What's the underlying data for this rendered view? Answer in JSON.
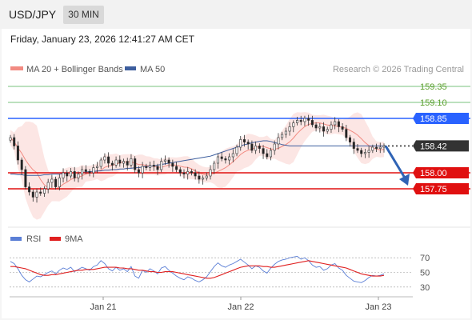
{
  "header": {
    "symbol": "USD/JPY",
    "timeframe": "30 MIN"
  },
  "timestamp": "Friday, January 23, 2026 12:41:27 AM CET",
  "legend": {
    "ma20": {
      "label": "MA 20 + Bollinger Bands",
      "color": "#f28b82"
    },
    "ma50": {
      "label": "MA 50",
      "color": "#3d5e9e"
    }
  },
  "credit": "Research © 2026 Trading Central",
  "rsi_legend": {
    "rsi": {
      "label": "RSI",
      "color": "#5b7fd6"
    },
    "ma9": {
      "label": "9MA",
      "color": "#e02020"
    }
  },
  "chart_data": [
    {
      "type": "candlestick",
      "ylim": [
        157.3,
        159.55
      ],
      "levels": [
        {
          "value": 159.35,
          "label": "159.35",
          "kind": "target",
          "color": "#4caf50"
        },
        {
          "value": 159.1,
          "label": "159.10",
          "kind": "target",
          "color": "#4caf50"
        },
        {
          "value": 158.85,
          "label": "158.85",
          "kind": "pivot",
          "color": "#2962ff"
        },
        {
          "value": 158.42,
          "label": "158.42",
          "kind": "last",
          "color": "#333333"
        },
        {
          "value": 158.0,
          "label": "158.00",
          "kind": "support",
          "color": "#e01010"
        },
        {
          "value": 157.75,
          "label": "157.75",
          "kind": "support",
          "color": "#e01010"
        }
      ],
      "close_series": [
        158.55,
        158.42,
        158.2,
        158.05,
        157.78,
        157.7,
        157.62,
        157.7,
        157.68,
        157.75,
        157.85,
        157.9,
        157.78,
        157.92,
        158.0,
        157.95,
        158.02,
        157.92,
        157.98,
        158.05,
        158.02,
        158.0,
        158.08,
        158.1,
        158.2,
        158.25,
        158.15,
        158.12,
        158.2,
        158.15,
        158.18,
        158.12,
        158.22,
        158.05,
        158.0,
        158.1,
        158.08,
        158.12,
        158.1,
        158.05,
        158.18,
        158.2,
        158.15,
        158.1,
        158.05,
        158.0,
        157.98,
        158.02,
        158.0,
        157.95,
        157.9,
        157.92,
        157.95,
        158.05,
        158.15,
        158.25,
        158.22,
        158.2,
        158.25,
        158.3,
        158.4,
        158.52,
        158.48,
        158.45,
        158.35,
        158.42,
        158.38,
        158.3,
        158.25,
        158.35,
        158.45,
        158.55,
        158.6,
        158.65,
        158.72,
        158.78,
        158.82,
        158.8,
        158.85,
        158.82,
        158.75,
        158.7,
        158.72,
        158.65,
        158.68,
        158.75,
        158.8,
        158.72,
        158.68,
        158.55,
        158.48,
        158.38,
        158.35,
        158.3,
        158.32,
        158.35,
        158.4,
        158.38,
        158.4,
        158.42
      ],
      "ma50": [
        157.98,
        157.98,
        157.97,
        157.97,
        157.96,
        157.96,
        157.96,
        157.96,
        157.96,
        157.97,
        157.97,
        157.98,
        157.98,
        157.98,
        157.99,
        157.99,
        158.0,
        158.0,
        158.0,
        158.01,
        158.01,
        158.02,
        158.02,
        158.03,
        158.03,
        158.04,
        158.04,
        158.05,
        158.05,
        158.06,
        158.06,
        158.07,
        158.07,
        158.08,
        158.08,
        158.09,
        158.1,
        158.1,
        158.11,
        158.12,
        158.13,
        158.14,
        158.15,
        158.16,
        158.17,
        158.18,
        158.19,
        158.2,
        158.21,
        158.22,
        158.23,
        158.24,
        158.25,
        158.26,
        158.28,
        158.3,
        158.32,
        158.34,
        158.36,
        158.38,
        158.4,
        158.42,
        158.44,
        158.45,
        158.47,
        158.48,
        158.49,
        158.5,
        158.5,
        158.49,
        158.47,
        158.46,
        158.44,
        158.43,
        158.42,
        158.42,
        158.42,
        158.42,
        158.42,
        158.42,
        158.42,
        158.42,
        158.42,
        158.42,
        158.42,
        158.42,
        158.42,
        158.42,
        158.42,
        158.42,
        158.42,
        158.42,
        158.42,
        158.42,
        158.42,
        158.42,
        158.42,
        158.42,
        158.42,
        158.42
      ],
      "x_ticks": [
        "Jan 21",
        "Jan 22",
        "Jan 23"
      ]
    },
    {
      "type": "line",
      "title": "RSI",
      "ylim": [
        20,
        80
      ],
      "y_ticks": [
        70,
        50,
        30
      ],
      "series": [
        {
          "name": "RSI",
          "values": [
            65,
            62,
            55,
            46,
            40,
            37,
            41,
            45,
            44,
            47,
            50,
            52,
            48,
            53,
            56,
            54,
            57,
            51,
            54,
            57,
            55,
            53,
            58,
            60,
            66,
            62,
            55,
            52,
            57,
            53,
            55,
            51,
            58,
            45,
            42,
            53,
            50,
            55,
            52,
            48,
            56,
            58,
            53,
            49,
            45,
            42,
            40,
            44,
            42,
            39,
            37,
            40,
            44,
            51,
            58,
            63,
            59,
            57,
            60,
            62,
            65,
            68,
            64,
            60,
            55,
            59,
            57,
            52,
            49,
            56,
            61,
            65,
            67,
            68,
            70,
            71,
            72,
            68,
            70,
            66,
            60,
            57,
            58,
            53,
            55,
            60,
            62,
            56,
            53,
            46,
            42,
            38,
            37,
            36,
            39,
            43,
            46,
            45,
            46,
            48
          ]
        },
        {
          "name": "9MA",
          "values": [
            58,
            58,
            57,
            56,
            55,
            53,
            51,
            49,
            47,
            46,
            46,
            47,
            47,
            48,
            49,
            50,
            51,
            52,
            53,
            53,
            54,
            54,
            54,
            55,
            56,
            57,
            57,
            57,
            57,
            56,
            56,
            55,
            55,
            54,
            53,
            53,
            52,
            51,
            51,
            50,
            50,
            51,
            51,
            51,
            50,
            49,
            48,
            47,
            46,
            45,
            44,
            43,
            42,
            42,
            43,
            45,
            47,
            49,
            51,
            53,
            55,
            57,
            58,
            59,
            59,
            59,
            59,
            58,
            58,
            57,
            57,
            58,
            59,
            60,
            61,
            62,
            63,
            64,
            65,
            66,
            65,
            64,
            63,
            62,
            61,
            60,
            59,
            58,
            57,
            56,
            54,
            52,
            50,
            48,
            47,
            46,
            45,
            45,
            45,
            46
          ]
        }
      ]
    }
  ]
}
